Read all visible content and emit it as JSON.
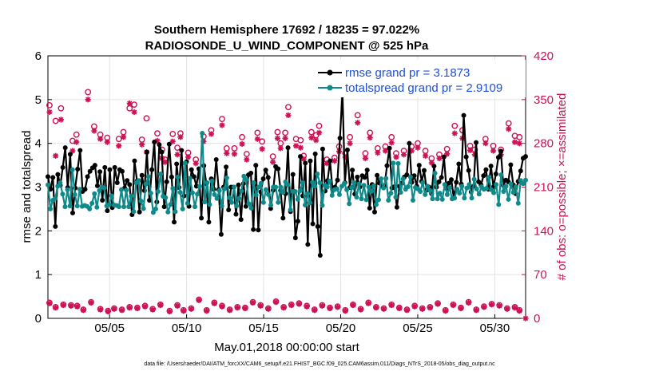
{
  "chart_data": {
    "type": "line",
    "title": "Southern Hemisphere 17692 / 18235 = 97.022%",
    "subtitle": "RADIOSONDE_U_WIND_COMPONENT @ 525 hPa",
    "xlabel": "May.01,2018 00:00:00 start",
    "ylabel": "rmse and totalspread",
    "y2label": "# of obs: o=possible; ×=assimilated",
    "xlim": [
      1,
      32
    ],
    "ylim": [
      0,
      6
    ],
    "y2lim": [
      0,
      420
    ],
    "x_ticks": [
      5,
      10,
      15,
      20,
      25,
      30
    ],
    "x_tick_labels": [
      "05/05",
      "05/10",
      "05/15",
      "05/20",
      "05/25",
      "05/30"
    ],
    "y_ticks": [
      0,
      1,
      2,
      3,
      4,
      5,
      6
    ],
    "y2_ticks": [
      0,
      70,
      140,
      210,
      280,
      350,
      420
    ],
    "grid": true,
    "legend_position": "top-right",
    "footnote": "data file: /Users/raeder/DAI/ATM_forcXX/CAM6_setup/f.e21.FHIST_BGC.f09_025.CAM6assim.011/Diags_NTrS_2018-05/obs_diag_output.nc",
    "colors": {
      "rmse": "#000000",
      "spread": "#0e8a8a",
      "obs": "#cc1155",
      "legend_text": "#1f4fd6",
      "grid": "#e3e3e3"
    },
    "series": [
      {
        "name": "rmse grand pr = 3.1873",
        "style": "rmse",
        "values": [
          3.24,
          2.95,
          3.22,
          2.1,
          3.29,
          3.04,
          3.45,
          3.9,
          2.99,
          3.75,
          2.41,
          2.98,
          3.41,
          3.84,
          2.9,
          2.95,
          3.24,
          3.36,
          3.44,
          3.5,
          3.03,
          3.35,
          2.7,
          3.45,
          2.46,
          3.4,
          2.53,
          3.45,
          3.1,
          3.4,
          3.36,
          2.98,
          3.15,
          3.06,
          2.37,
          3.6,
          3.14,
          2.43,
          3.27,
          2.92,
          3.8,
          2.7,
          3.4,
          4.03,
          2.66,
          3.97,
          3.8,
          2.55,
          3.12,
          3.98,
          3.23,
          2.2,
          3.53,
          2.99,
          3.84,
          2.8,
          3.58,
          2.56,
          3.4,
          3.24,
          3.02,
          3.42,
          2.29,
          3.49,
          3.08,
          2.2,
          3.19,
          2.95,
          3.63,
          2.94,
          1.92,
          3.0,
          3.46,
          2.48,
          3.0,
          3.0,
          2.38,
          3.05,
          2.26,
          3.08,
          2.56,
          3.28,
          3.32,
          2.03,
          3.5,
          2.02,
          2.89,
          3.19,
          3.39,
          3.22,
          2.51,
          2.93,
          3.47,
          3.42,
          2.92,
          2.29,
          2.85,
          3.9,
          2.44,
          3.29,
          1.84,
          2.22,
          3.7,
          2.8,
          3.55,
          1.69,
          3.6,
          2.16,
          3.76,
          2.1,
          1.44,
          3.87,
          2.91,
          3.15,
          3.6,
          2.94,
          3.0,
          3.16,
          4.12,
          5.18,
          3.1,
          3.85,
          2.99,
          3.39,
          2.84,
          3.23,
          3.0,
          3.26,
          3.22,
          3.39,
          2.52,
          3.06,
          2.43,
          3.27,
          3.09,
          3.02,
          3.03,
          3.49,
          3.89,
          2.98,
          3.01,
          2.54,
          3.02,
          3.09,
          3.23,
          3.28,
          4.0,
          3.11,
          3.26,
          3.02,
          3.5,
          3.13,
          3.38,
          2.93,
          3.0,
          2.85,
          3.48,
          3.0,
          3.12,
          3.22,
          3.69,
          2.97,
          3.09,
          3.17,
          2.75,
          3.11,
          3.53,
          3.07,
          4.64,
          3.69,
          3.38,
          2.89,
          3.02,
          4.02,
          3.12,
          3.05,
          3.26,
          3.4,
          2.95,
          3.48,
          3.0,
          3.3,
          3.68,
          3.82,
          3.04,
          3.16,
          3.12,
          3.51,
          3.05,
          2.85,
          3.13,
          3.37,
          3.66,
          3.7
        ]
      },
      {
        "name": "totalspread grand pr = 2.9109",
        "style": "spread",
        "values": [
          3.05,
          2.5,
          2.7,
          2.74,
          3.02,
          3.1,
          2.84,
          2.55,
          2.94,
          2.57,
          3.4,
          2.83,
          2.57,
          2.95,
          2.56,
          2.58,
          2.56,
          2.5,
          2.63,
          2.85,
          2.54,
          2.92,
          3.0,
          2.98,
          2.57,
          2.6,
          2.8,
          2.59,
          2.58,
          2.55,
          2.94,
          2.55,
          2.93,
          2.55,
          2.8,
          2.44,
          3.1,
          3.15,
          2.68,
          2.51,
          3.07,
          3.24,
          2.86,
          2.42,
          2.5,
          2.9,
          3.3,
          2.79,
          2.76,
          2.43,
          2.6,
          2.97,
          2.44,
          3.23,
          2.88,
          2.5,
          3.55,
          2.63,
          3.2,
          2.87,
          2.55,
          2.84,
          3.02,
          4.23,
          2.66,
          3.1,
          2.6,
          3.14,
          2.83,
          2.74,
          2.92,
          2.57,
          2.96,
          3.21,
          2.76,
          2.65,
          3.0,
          2.57,
          2.74,
          2.91,
          3.25,
          3.17,
          2.62,
          2.52,
          3.1,
          2.82,
          3.0,
          3.09,
          2.65,
          2.94,
          2.83,
          2.59,
          3.0,
          3.0,
          2.65,
          3.0,
          2.88,
          3.12,
          3.05,
          2.48,
          2.9,
          2.9,
          2.72,
          2.92,
          3.1,
          2.59,
          2.85,
          2.64,
          3.11,
          3.02,
          3.3,
          3.1,
          2.58,
          3.04,
          3.0,
          3.14,
          2.81,
          2.94,
          2.96,
          2.83,
          3.02,
          3.09,
          2.94,
          2.62,
          2.99,
          3.1,
          2.77,
          3.07,
          2.73,
          3.04,
          2.71,
          3.0,
          2.9,
          3.03,
          2.6,
          2.71,
          3.19,
          2.98,
          3.2,
          2.7,
          2.86,
          3.55,
          2.77,
          3.54,
          2.88,
          3.19,
          2.95,
          3.01,
          3.23,
          2.7,
          2.99,
          2.96,
          2.9,
          3.1,
          2.83,
          3.02,
          2.92,
          2.73,
          3.32,
          2.73,
          2.86,
          2.72,
          3.06,
          2.83,
          2.99,
          2.73,
          2.75,
          2.95,
          2.86,
          3.02,
          2.75,
          2.98,
          3.06,
          2.75,
          3.18,
          2.96,
          2.84,
          3.01,
          2.95,
          2.97,
          3.22,
          2.94,
          2.87,
          3.06,
          2.6,
          3.28,
          2.9,
          3.02,
          2.72,
          3.07,
          2.88,
          3.01,
          2.63,
          3.15,
          3.08,
          3.16
        ]
      }
    ],
    "obs_possible": {
      "x": [
        1.1,
        1.5,
        1.85,
        2.6,
        2.85,
        3.6,
        4.0,
        4.4,
        4.85,
        5.6,
        5.9,
        6.3,
        6.6,
        7.1,
        7.4,
        8.1,
        8.4,
        8.6,
        9.1,
        9.4,
        9.6,
        10.1,
        10.6,
        11.1,
        11.6,
        12.3,
        12.6,
        13.1,
        13.6,
        13.9,
        14.6,
        14.9,
        15.6,
        15.9,
        16.1,
        16.4,
        16.6,
        17.1,
        17.4,
        17.6,
        18.1,
        18.4,
        18.6,
        19.1,
        19.6,
        19.9,
        20.3,
        20.6,
        21.1,
        21.6,
        21.9,
        22.4,
        22.9,
        23.3,
        23.6,
        24.1,
        24.6,
        25.0,
        25.5,
        25.9,
        26.4,
        26.9,
        27.4,
        27.9,
        28.4,
        28.7,
        29.4,
        29.9,
        30.4,
        30.9,
        31.3,
        31.6
      ],
      "y": [
        341,
        316,
        336,
        284,
        294,
        362,
        307,
        294,
        289,
        287,
        298,
        336,
        342,
        286,
        320,
        296,
        270,
        254,
        295,
        273,
        296,
        265,
        254,
        291,
        301,
        319,
        272,
        272,
        290,
        263,
        297,
        283,
        259,
        298,
        280,
        297,
        338,
        287,
        285,
        260,
        298,
        293,
        308,
        254,
        257,
        275,
        264,
        290,
        325,
        264,
        297,
        272,
        275,
        290,
        264,
        268,
        275,
        280,
        268,
        256,
        262,
        271,
        308,
        301,
        276,
        270,
        287,
        276,
        270,
        312,
        292,
        290
      ]
    },
    "obs_assimilated": {
      "x": [
        1.1,
        1.5,
        1.85,
        2.6,
        2.85,
        3.6,
        4.0,
        4.4,
        4.85,
        5.6,
        5.9,
        6.3,
        6.6,
        7.1,
        7.4,
        8.1,
        8.4,
        8.6,
        9.1,
        9.4,
        9.6,
        10.1,
        10.6,
        11.1,
        11.6,
        12.3,
        12.6,
        13.1,
        13.6,
        13.9,
        14.6,
        14.9,
        15.6,
        15.9,
        16.1,
        16.4,
        16.6,
        17.1,
        17.4,
        17.6,
        18.1,
        18.4,
        18.6,
        19.1,
        19.6,
        19.9,
        20.3,
        20.6,
        21.1,
        21.6,
        21.9,
        22.4,
        22.9,
        23.3,
        23.6,
        24.1,
        24.6,
        25.0,
        25.5,
        25.9,
        26.4,
        26.9,
        27.4,
        27.9,
        28.4,
        28.7,
        29.4,
        29.9,
        30.4,
        30.9,
        31.3,
        31.6
      ],
      "y": [
        330,
        260,
        318,
        268,
        282,
        350,
        300,
        287,
        282,
        276,
        290,
        344,
        330,
        278,
        266,
        284,
        256,
        250,
        283,
        262,
        290,
        258,
        248,
        283,
        295,
        309,
        264,
        263,
        279,
        254,
        287,
        271,
        250,
        288,
        272,
        288,
        325,
        276,
        273,
        255,
        289,
        285,
        297,
        248,
        252,
        267,
        258,
        280,
        313,
        256,
        289,
        265,
        268,
        281,
        258,
        262,
        268,
        273,
        260,
        249,
        256,
        263,
        296,
        288,
        269,
        262,
        280,
        268,
        262,
        303,
        282,
        280
      ]
    },
    "obs_low_possible": {
      "x": [
        1.1,
        1.5,
        2.0,
        2.5,
        2.9,
        3.3,
        3.8,
        4.4,
        4.9,
        5.3,
        5.8,
        6.3,
        6.8,
        7.3,
        7.8,
        8.3,
        8.9,
        9.4,
        9.8,
        10.3,
        10.8,
        11.3,
        11.8,
        12.3,
        12.8,
        13.3,
        13.8,
        14.3,
        14.8,
        15.3,
        15.8,
        16.3,
        16.8,
        17.3,
        17.8,
        18.3,
        18.8,
        19.3,
        19.8,
        20.3,
        20.8,
        21.3,
        21.8,
        22.3,
        22.8,
        23.3,
        23.8,
        24.3,
        24.8,
        25.3,
        25.8,
        26.3,
        26.8,
        27.3,
        27.8,
        28.3,
        28.8,
        29.3,
        29.8,
        30.3,
        30.8,
        31.3,
        31.6
      ],
      "y": [
        25,
        18,
        22,
        21,
        20,
        14,
        26,
        15,
        12,
        16,
        14,
        18,
        17,
        20,
        15,
        22,
        12,
        21,
        13,
        16,
        30,
        13,
        25,
        20,
        14,
        18,
        17,
        26,
        21,
        16,
        27,
        18,
        22,
        24,
        20,
        14,
        21,
        17,
        19,
        13,
        22,
        15,
        25,
        18,
        16,
        22,
        17,
        14,
        20,
        16,
        18,
        24,
        13,
        22,
        17,
        26,
        14,
        19,
        23,
        21,
        16,
        18,
        13
      ]
    },
    "obs_low_assimilated": {
      "x": [
        1.1,
        1.5,
        2.0,
        2.5,
        2.9,
        3.3,
        3.8,
        4.4,
        4.9,
        5.3,
        5.8,
        6.3,
        6.8,
        7.3,
        7.8,
        8.3,
        8.9,
        9.4,
        9.8,
        10.3,
        10.8,
        11.3,
        11.8,
        12.3,
        12.8,
        13.3,
        13.8,
        14.3,
        14.8,
        15.3,
        15.8,
        16.3,
        16.8,
        17.3,
        17.8,
        18.3,
        18.8,
        19.3,
        19.8,
        20.3,
        20.8,
        21.3,
        21.8,
        22.3,
        22.8,
        23.3,
        23.8,
        24.3,
        24.8,
        25.3,
        25.8,
        26.3,
        26.8,
        27.3,
        27.8,
        28.3,
        28.8,
        29.3,
        29.8,
        30.3,
        30.8,
        31.3,
        31.6
      ],
      "y": [
        24,
        17,
        21,
        20,
        19,
        13,
        25,
        14,
        11,
        15,
        13,
        17,
        16,
        19,
        14,
        21,
        11,
        20,
        12,
        15,
        29,
        12,
        24,
        19,
        13,
        17,
        16,
        25,
        20,
        15,
        26,
        17,
        21,
        23,
        19,
        13,
        20,
        16,
        18,
        12,
        21,
        14,
        24,
        17,
        15,
        21,
        16,
        13,
        19,
        15,
        17,
        23,
        12,
        21,
        16,
        25,
        13,
        18,
        22,
        20,
        15,
        17,
        12
      ]
    },
    "obs_zero": {
      "x": [
        32.0
      ],
      "y": [
        0
      ]
    }
  }
}
